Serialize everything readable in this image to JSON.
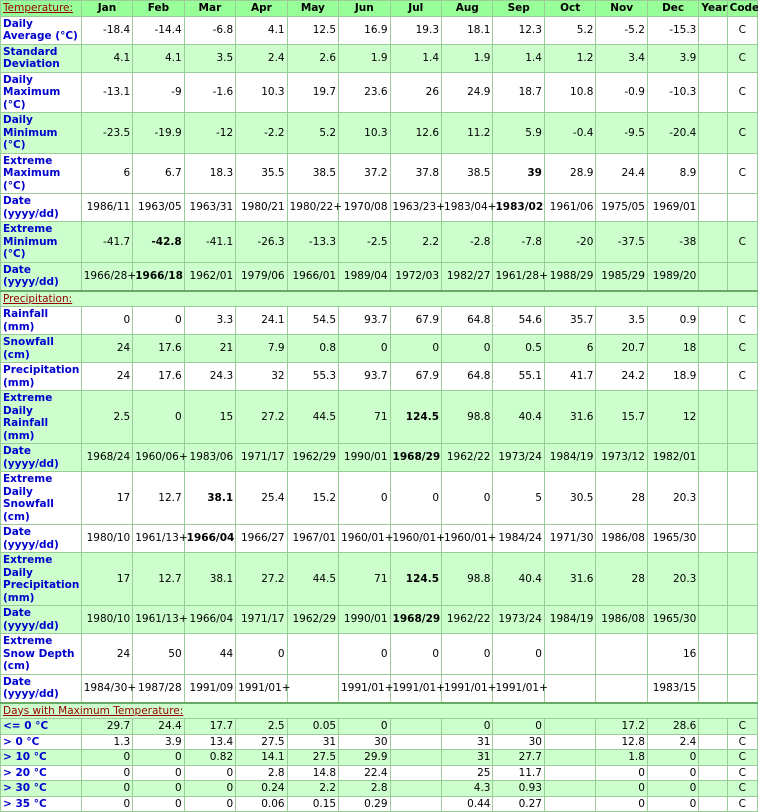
{
  "header": {
    "columns": [
      "Jan",
      "Feb",
      "Mar",
      "Apr",
      "May",
      "Jun",
      "Jul",
      "Aug",
      "Sep",
      "Oct",
      "Nov",
      "Dec",
      "Year",
      "Code"
    ]
  },
  "sections": [
    {
      "title": "Temperature:",
      "rows": [
        {
          "label": "Daily Average (°C)",
          "shade": false,
          "cells": [
            "-18.4",
            "-14.4",
            "-6.8",
            "4.1",
            "12.5",
            "16.9",
            "19.3",
            "18.1",
            "12.3",
            "5.2",
            "-5.2",
            "-15.3",
            null,
            "C"
          ]
        },
        {
          "label": "Standard Deviation",
          "shade": true,
          "cells": [
            "4.1",
            "4.1",
            "3.5",
            "2.4",
            "2.6",
            "1.9",
            "1.4",
            "1.9",
            "1.4",
            "1.2",
            "3.4",
            "3.9",
            null,
            "C"
          ]
        },
        {
          "label": "Daily Maximum (°C)",
          "shade": false,
          "cells": [
            "-13.1",
            "-9",
            "-1.6",
            "10.3",
            "19.7",
            "23.6",
            "26",
            "24.9",
            "18.7",
            "10.8",
            "-0.9",
            "-10.3",
            null,
            "C"
          ]
        },
        {
          "label": "Daily Minimum (°C)",
          "shade": true,
          "cells": [
            "-23.5",
            "-19.9",
            "-12",
            "-2.2",
            "5.2",
            "10.3",
            "12.6",
            "11.2",
            "5.9",
            "-0.4",
            "-9.5",
            "-20.4",
            null,
            "C"
          ]
        },
        {
          "label": "Extreme Maximum (°C)",
          "shade": false,
          "cells": [
            "6",
            "6.7",
            "18.3",
            "35.5",
            "38.5",
            "37.2",
            "37.8",
            "38.5",
            {
              "text": "39",
              "bold": true
            },
            "28.9",
            "24.4",
            "8.9",
            null,
            "C"
          ]
        },
        {
          "label": "Date (yyyy/dd)",
          "shade": false,
          "cells": [
            "1986/11",
            "1963/05",
            "1963/31",
            "1980/21",
            "1980/22+",
            "1970/08",
            "1963/23+",
            "1983/04+",
            {
              "text": "1983/02",
              "bold": true
            },
            "1961/06",
            "1975/05",
            "1969/01",
            null,
            null
          ]
        },
        {
          "label": "Extreme Minimum (°C)",
          "shade": true,
          "cells": [
            "-41.7",
            {
              "text": "-42.8",
              "bold": true
            },
            "-41.1",
            "-26.3",
            "-13.3",
            "-2.5",
            "2.2",
            "-2.8",
            "-7.8",
            "-20",
            "-37.5",
            "-38",
            null,
            "C"
          ]
        },
        {
          "label": "Date (yyyy/dd)",
          "shade": true,
          "cells": [
            "1966/28+",
            {
              "text": "1966/18",
              "bold": true
            },
            "1962/01",
            "1979/06",
            "1966/01",
            "1989/04",
            "1972/03",
            "1982/27",
            "1961/28+",
            "1988/29",
            "1985/29",
            "1989/20",
            null,
            null
          ]
        }
      ]
    },
    {
      "title": "Precipitation:",
      "rows": [
        {
          "label": "Rainfall (mm)",
          "shade": false,
          "cells": [
            "0",
            "0",
            "3.3",
            "24.1",
            "54.5",
            "93.7",
            "67.9",
            "64.8",
            "54.6",
            "35.7",
            "3.5",
            "0.9",
            null,
            "C"
          ]
        },
        {
          "label": "Snowfall (cm)",
          "shade": true,
          "cells": [
            "24",
            "17.6",
            "21",
            "7.9",
            "0.8",
            "0",
            "0",
            "0",
            "0.5",
            "6",
            "20.7",
            "18",
            null,
            "C"
          ]
        },
        {
          "label": "Precipitation (mm)",
          "shade": false,
          "cells": [
            "24",
            "17.6",
            "24.3",
            "32",
            "55.3",
            "93.7",
            "67.9",
            "64.8",
            "55.1",
            "41.7",
            "24.2",
            "18.9",
            null,
            "C"
          ]
        },
        {
          "label": "Extreme Daily Rainfall (mm)",
          "shade": true,
          "cells": [
            "2.5",
            "0",
            "15",
            "27.2",
            "44.5",
            "71",
            {
              "text": "124.5",
              "bold": true
            },
            "98.8",
            "40.4",
            "31.6",
            "15.7",
            "12",
            null,
            null
          ]
        },
        {
          "label": "Date (yyyy/dd)",
          "shade": true,
          "cells": [
            "1968/24",
            "1960/06+",
            "1983/06",
            "1971/17",
            "1962/29",
            "1990/01",
            {
              "text": "1968/29",
              "bold": true
            },
            "1962/22",
            "1973/24",
            "1984/19",
            "1973/12",
            "1982/01",
            null,
            null
          ]
        },
        {
          "label": "Extreme Daily Snowfall (cm)",
          "shade": false,
          "cells": [
            "17",
            "12.7",
            {
              "text": "38.1",
              "bold": true
            },
            "25.4",
            "15.2",
            "0",
            "0",
            "0",
            "5",
            "30.5",
            "28",
            "20.3",
            null,
            null
          ]
        },
        {
          "label": "Date (yyyy/dd)",
          "shade": false,
          "cells": [
            "1980/10",
            "1961/13+",
            {
              "text": "1966/04",
              "bold": true
            },
            "1966/27",
            "1967/01",
            "1960/01+",
            "1960/01+",
            "1960/01+",
            "1984/24",
            "1971/30",
            "1986/08",
            "1965/30",
            null,
            null
          ]
        },
        {
          "label": "Extreme Daily Precipitation (mm)",
          "shade": true,
          "cells": [
            "17",
            "12.7",
            "38.1",
            "27.2",
            "44.5",
            "71",
            {
              "text": "124.5",
              "bold": true
            },
            "98.8",
            "40.4",
            "31.6",
            "28",
            "20.3",
            null,
            null
          ]
        },
        {
          "label": "Date (yyyy/dd)",
          "shade": true,
          "cells": [
            "1980/10",
            "1961/13+",
            "1966/04",
            "1971/17",
            "1962/29",
            "1990/01",
            {
              "text": "1968/29",
              "bold": true
            },
            "1962/22",
            "1973/24",
            "1984/19",
            "1986/08",
            "1965/30",
            null,
            null
          ]
        },
        {
          "label": "Extreme Snow Depth (cm)",
          "shade": false,
          "cells": [
            "24",
            "50",
            "44",
            "0",
            null,
            "0",
            "0",
            "0",
            "0",
            null,
            null,
            "16",
            null,
            null
          ]
        },
        {
          "label": "Date (yyyy/dd)",
          "shade": false,
          "cells": [
            "1984/30+",
            "1987/28",
            "1991/09",
            "1991/01+",
            null,
            "1991/01+",
            "1991/01+",
            "1991/01+",
            "1991/01+",
            null,
            null,
            "1983/15",
            null,
            null
          ]
        }
      ]
    },
    {
      "title": "Days with Maximum Temperature:",
      "rows": [
        {
          "label": "<= 0 °C",
          "shade": true,
          "cells": [
            "29.7",
            "24.4",
            "17.7",
            "2.5",
            "0.05",
            "0",
            null,
            "0",
            "0",
            null,
            "17.2",
            "28.6",
            null,
            "C"
          ]
        },
        {
          "label": "> 0 °C",
          "shade": false,
          "cells": [
            "1.3",
            "3.9",
            "13.4",
            "27.5",
            "31",
            "30",
            null,
            "31",
            "30",
            null,
            "12.8",
            "2.4",
            null,
            "C"
          ]
        },
        {
          "label": "> 10 °C",
          "shade": true,
          "cells": [
            "0",
            "0",
            "0.82",
            "14.1",
            "27.5",
            "29.9",
            null,
            "31",
            "27.7",
            null,
            "1.8",
            "0",
            null,
            "C"
          ]
        },
        {
          "label": "> 20 °C",
          "shade": false,
          "cells": [
            "0",
            "0",
            "0",
            "2.8",
            "14.8",
            "22.4",
            null,
            "25",
            "11.7",
            null,
            "0",
            "0",
            null,
            "C"
          ]
        },
        {
          "label": "> 30 °C",
          "shade": true,
          "cells": [
            "0",
            "0",
            "0",
            "0.24",
            "2.2",
            "2.8",
            null,
            "4.3",
            "0.93",
            null,
            "0",
            "0",
            null,
            "C"
          ]
        },
        {
          "label": "> 35 °C",
          "shade": false,
          "cells": [
            "0",
            "0",
            "0",
            "0.06",
            "0.15",
            "0.29",
            null,
            "0.44",
            "0.27",
            null,
            "0",
            "0",
            null,
            "C"
          ]
        }
      ]
    }
  ]
}
